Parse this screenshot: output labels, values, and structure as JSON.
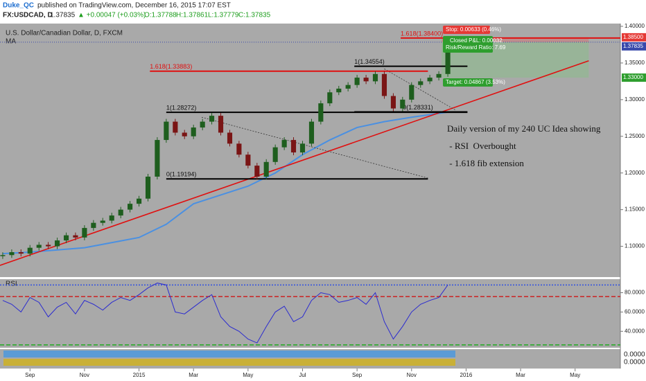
{
  "header": {
    "publisher": "Duke_QC",
    "published": "published on TradingView.com, December 16, 2015 17:07 EST"
  },
  "quote": {
    "symbol": "FX:USDCAD, D",
    "last": "1.37835",
    "change": "▲ +0.00047 (+0.03%)",
    "open": "O:1.37788",
    "high": "H:1.37861",
    "low": "L:1.37779",
    "close": "C:1.37835"
  },
  "chart_data": {
    "type": "candlestick",
    "title": "U.S. Dollar/Canadian Dollar, D, FXCM",
    "x": [
      -1.0,
      -0.67,
      -0.33,
      0,
      0.33,
      0.67,
      1.0,
      1.33,
      1.67,
      2.0,
      2.33,
      2.67,
      3.0,
      3.33,
      3.67,
      4.0,
      4.33,
      4.67,
      5.0,
      5.33,
      5.67,
      6.0,
      6.33,
      6.67,
      7.0,
      7.33,
      7.67,
      8.0,
      8.33,
      8.67,
      9.0,
      9.33,
      9.67,
      10.0,
      10.33,
      10.67,
      11.0,
      11.33,
      11.67,
      12.0,
      12.33,
      12.67,
      13.0,
      13.33,
      13.67,
      14.0,
      14.33,
      14.67,
      15.0,
      15.33
    ],
    "values": [
      1.088,
      1.092,
      1.09,
      1.098,
      1.102,
      1.1,
      1.108,
      1.115,
      1.112,
      1.125,
      1.132,
      1.135,
      1.142,
      1.15,
      1.158,
      1.165,
      1.195,
      1.245,
      1.27,
      1.255,
      1.25,
      1.262,
      1.27,
      1.278,
      1.255,
      1.24,
      1.225,
      1.21,
      1.195,
      1.215,
      1.235,
      1.245,
      1.228,
      1.24,
      1.27,
      1.295,
      1.31,
      1.315,
      1.32,
      1.33,
      1.325,
      1.335,
      1.305,
      1.288,
      1.3,
      1.32,
      1.325,
      1.33,
      1.335,
      1.365
    ],
    "up_color": "#1e5e1e",
    "down_color": "#7a1515",
    "xlim": [
      -1.1,
      21.66
    ],
    "xticks": [
      {
        "value": 0,
        "label": "Sep"
      },
      {
        "value": 2,
        "label": "Nov"
      },
      {
        "value": 4,
        "label": "2015"
      },
      {
        "value": 6,
        "label": "Mar"
      },
      {
        "value": 8,
        "label": "May"
      },
      {
        "value": 10,
        "label": "Jul"
      },
      {
        "value": 12,
        "label": "Sep"
      },
      {
        "value": 14,
        "label": "Nov"
      },
      {
        "value": 16,
        "label": "2016"
      },
      {
        "value": 18,
        "label": "Mar"
      },
      {
        "value": 20,
        "label": "May"
      }
    ],
    "ylim": [
      1.058,
      1.4
    ],
    "yticks": [
      {
        "value": 1.1,
        "label": "1.10000"
      },
      {
        "value": 1.15,
        "label": "1.15000"
      },
      {
        "value": 1.2,
        "label": "1.20000"
      },
      {
        "value": 1.25,
        "label": "1.25000"
      },
      {
        "value": 1.3,
        "label": "1.30000"
      },
      {
        "value": 1.35,
        "label": "1.35000"
      },
      {
        "value": 1.4,
        "label": "1.40000"
      }
    ],
    "ma": {
      "name": "MA",
      "color": "#4a90e2",
      "x": [
        -1,
        0,
        2,
        4,
        5,
        6,
        7,
        8,
        9,
        10,
        11,
        12,
        13,
        14,
        15.33
      ],
      "values": [
        1.09,
        1.092,
        1.098,
        1.112,
        1.13,
        1.158,
        1.17,
        1.182,
        1.2,
        1.225,
        1.245,
        1.262,
        1.27,
        1.276,
        1.283
      ]
    },
    "lines": [
      {
        "x": [
          -1.1,
          20.5
        ],
        "values": [
          1.074,
          1.353
        ],
        "color": "#e01010",
        "dash": false
      },
      {
        "x": [
          6.3,
          14.6
        ],
        "values": [
          1.276,
          1.193
        ],
        "color": "#333333",
        "dash": true
      },
      {
        "x": [
          13.0,
          15.6
        ],
        "values": [
          1.342,
          1.286
        ],
        "color": "#333333",
        "dash": true
      }
    ],
    "levels": [
      {
        "value": 1.28272,
        "label": "1(1.28272)",
        "x": [
          5.0,
          16.05
        ],
        "color": "#000000"
      },
      {
        "value": 1.19194,
        "label": "0(1.19194)",
        "x": [
          5.0,
          14.6
        ],
        "color": "#000000"
      },
      {
        "value": 1.34554,
        "label": "1(1.34554)",
        "x": [
          11.9,
          16.05
        ],
        "color": "#000000"
      },
      {
        "value": 1.28331,
        "label": "0(1.28331)",
        "x": [
          11.9,
          16.05
        ],
        "color": "#000000"
      },
      {
        "value": 1.33883,
        "label": "1.618(1.33883)",
        "x": [
          4.4,
          14.6
        ],
        "color": "#e01010"
      },
      {
        "value": 1.384,
        "label": "1.618(1.38400)",
        "x": [
          13.6,
          21.66
        ],
        "color": "#e01010"
      }
    ],
    "price_markers": [
      {
        "value": 1.385,
        "label": "1.38500",
        "color": "#e53935"
      },
      {
        "value": 1.37835,
        "label": "1.37835",
        "color": "#3949ab"
      },
      {
        "value": 1.33,
        "label": "1.33000",
        "color": "#2e9e2e"
      }
    ],
    "position_x": [
      15.1,
      20.5
    ],
    "position": {
      "stop": "Stop: 0.00633 (0.46%)",
      "pnl": "Closed P&L: 0.00032",
      "rr": "Risk/Reward Ratio: 7.69",
      "target": "Target: 0.04867 (3.53%)"
    },
    "annotation": [
      "Daily version of my 240 UC Idea showing",
      " - RSI  Overbought",
      " - 1.618 fib extension"
    ],
    "rsi": {
      "label": "RSI",
      "color": "#2a2ad0",
      "values": [
        72,
        68,
        60,
        75,
        70,
        55,
        65,
        70,
        58,
        72,
        68,
        62,
        70,
        75,
        72,
        78,
        85,
        90,
        88,
        60,
        58,
        65,
        72,
        78,
        55,
        45,
        40,
        32,
        28,
        45,
        60,
        66,
        50,
        55,
        72,
        80,
        78,
        70,
        72,
        75,
        68,
        80,
        50,
        32,
        45,
        60,
        68,
        72,
        75,
        88
      ],
      "ylim": [
        23,
        94
      ],
      "yticks": [
        {
          "value": 40,
          "label": "40.0000"
        },
        {
          "value": 60,
          "label": "60.0000"
        },
        {
          "value": 80,
          "label": "80.0000"
        }
      ],
      "levels": [
        {
          "value": 88,
          "color": "#3050e0",
          "dash": "2,2"
        },
        {
          "value": 76,
          "color": "#cc2222",
          "dash": "6,3"
        },
        {
          "value": 26,
          "color": "#22aa22",
          "dash": "6,3"
        }
      ]
    },
    "strip_labels": [
      "0.0000",
      "0.0000"
    ]
  }
}
